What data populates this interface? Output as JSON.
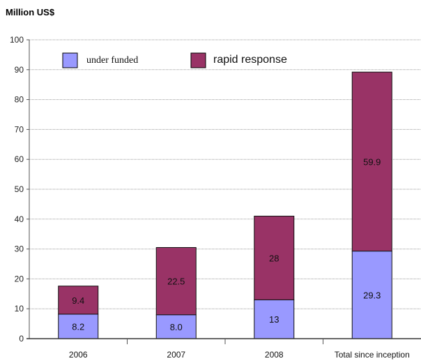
{
  "chart_data": {
    "type": "bar",
    "stacked": true,
    "unit_label": "Million US$",
    "categories": [
      "2006",
      "2007",
      "2008",
      "Total since inception"
    ],
    "series": [
      {
        "name": "under funded",
        "values": [
          8.2,
          8.0,
          13,
          29.3
        ],
        "labels": [
          "8.2",
          "8.0",
          "13",
          "29.3"
        ],
        "color": "#9999ff"
      },
      {
        "name": "rapid response",
        "values": [
          9.4,
          22.5,
          28,
          59.9
        ],
        "labels": [
          "9.4",
          "22.5",
          "28",
          "59.9"
        ],
        "color": "#993366"
      }
    ],
    "ylim": [
      0,
      100
    ],
    "yticks": [
      0,
      10,
      20,
      30,
      40,
      50,
      60,
      70,
      80,
      90,
      100
    ],
    "grid": true,
    "legend_position": "top-left"
  }
}
